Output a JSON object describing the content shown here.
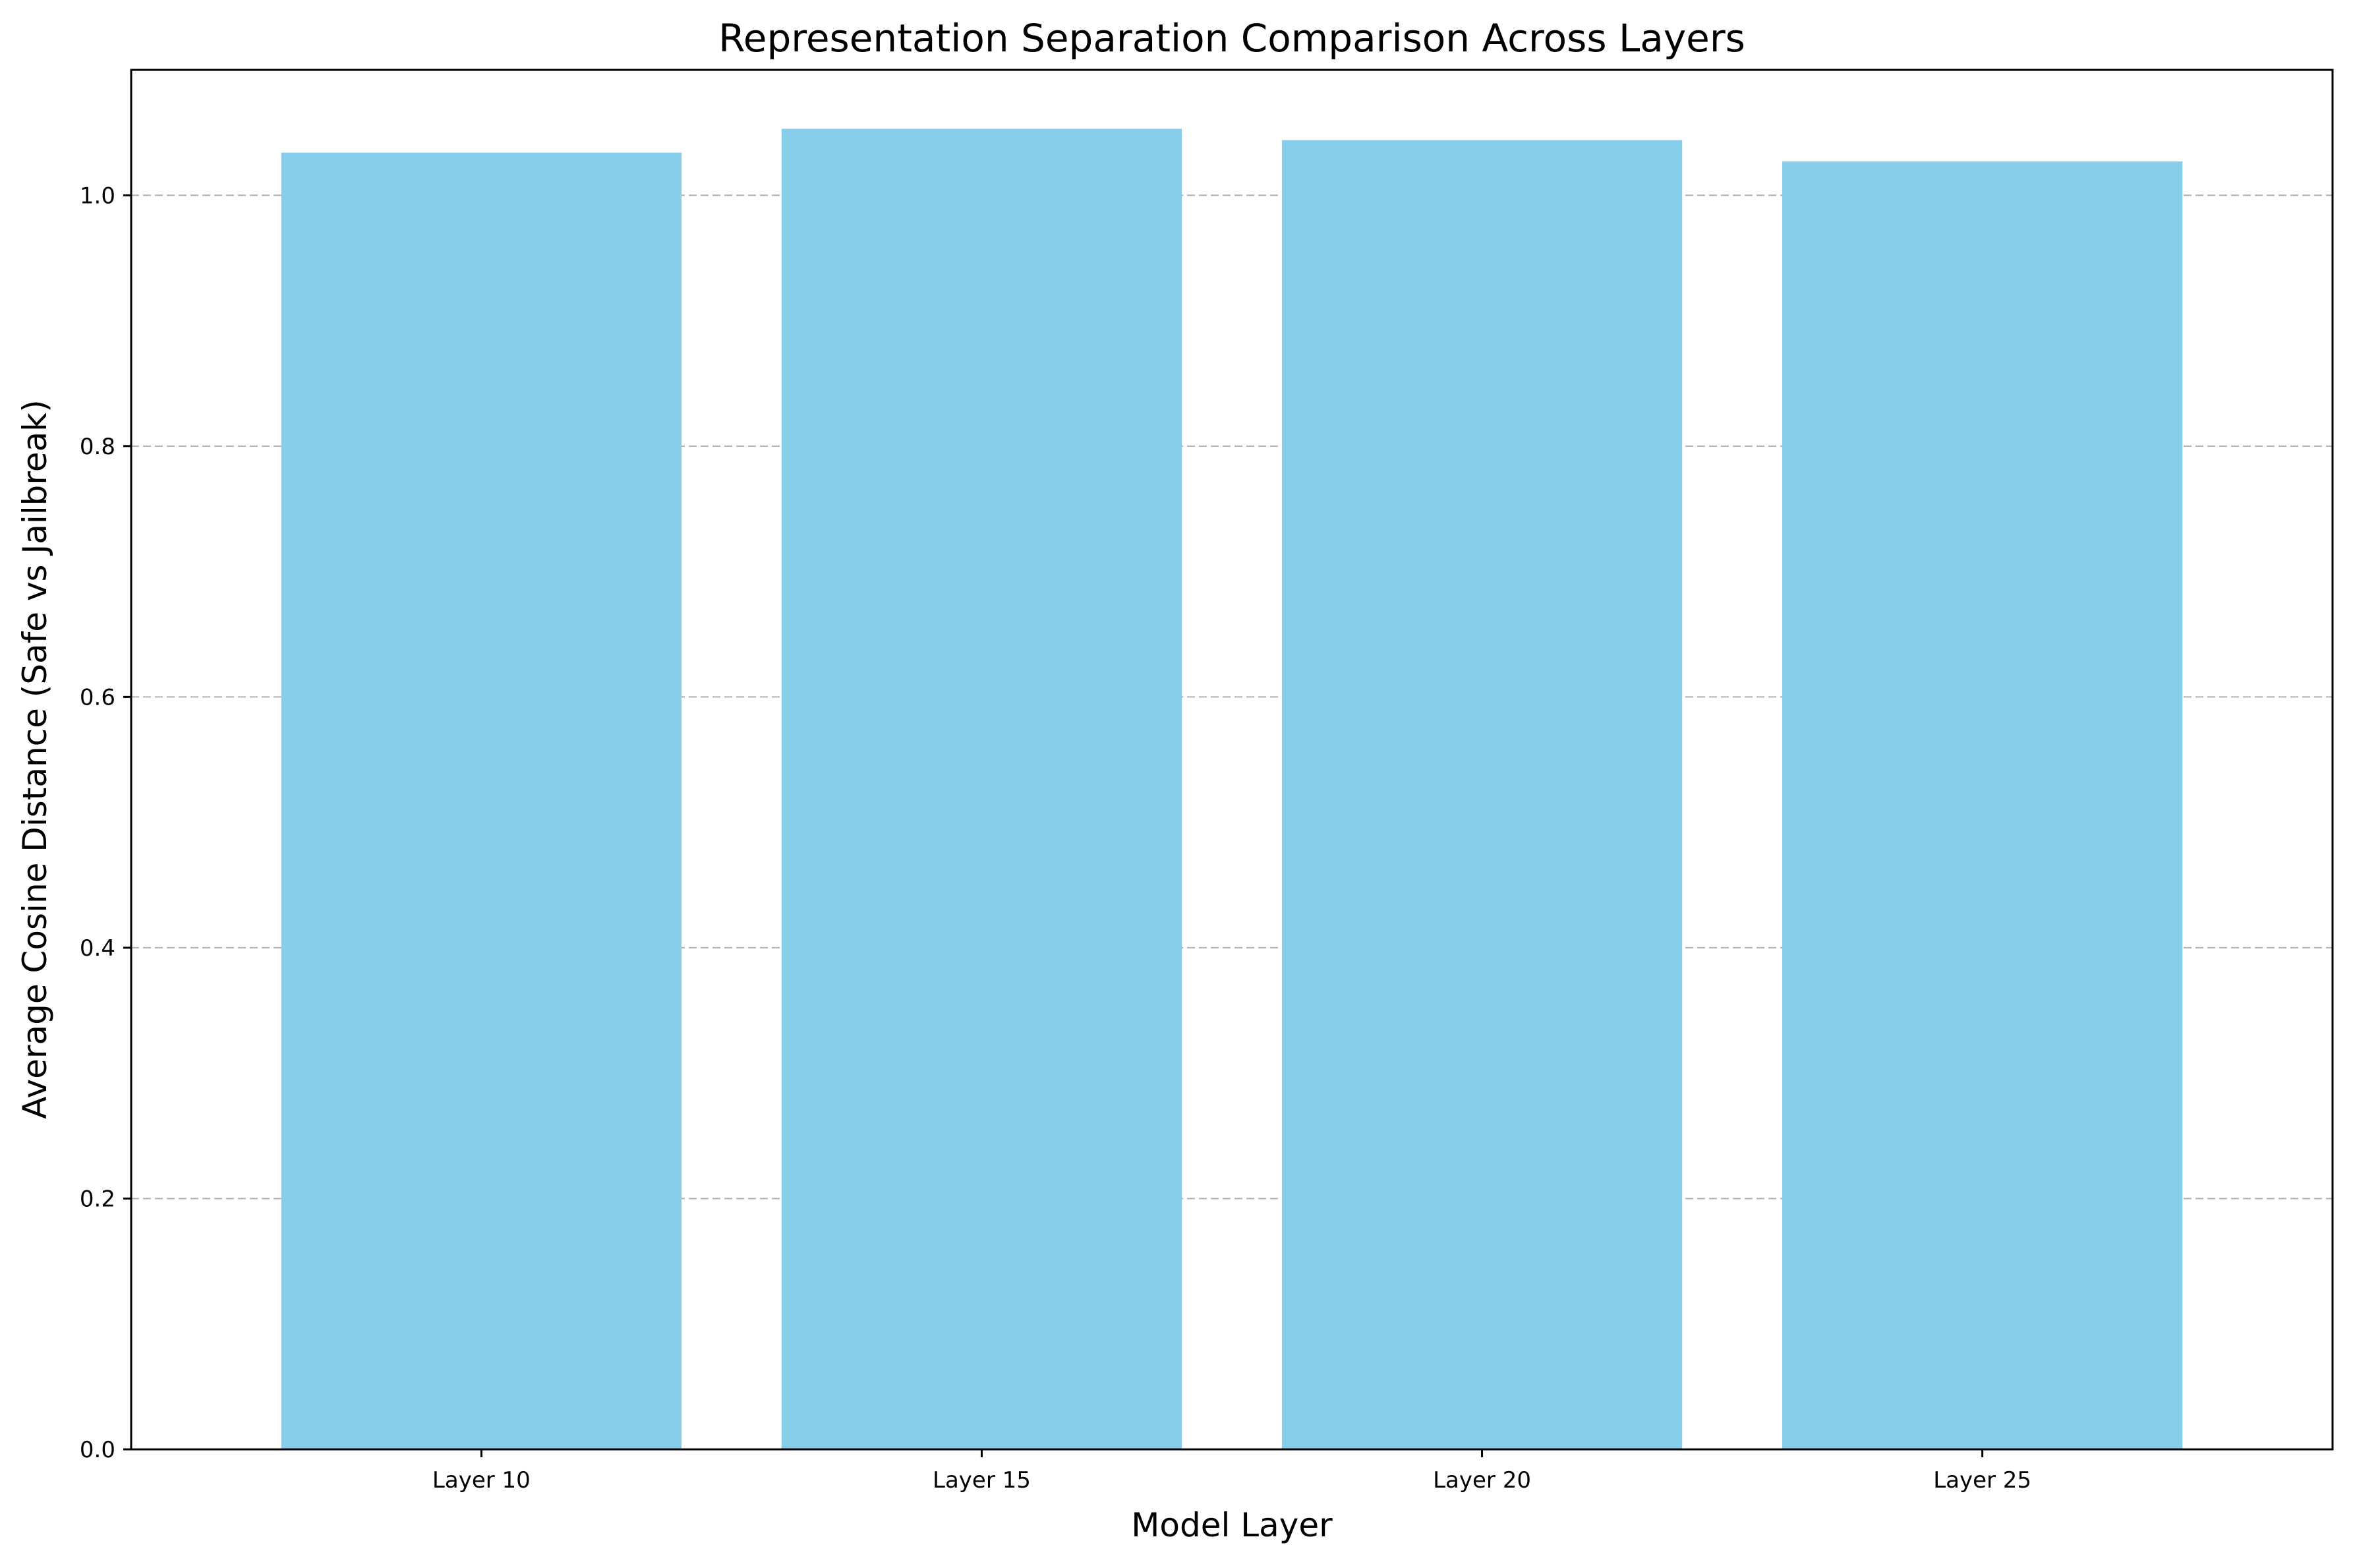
{
  "chart_data": {
    "type": "bar",
    "title": "Representation Separation Comparison Across Layers",
    "xlabel": "Model Layer",
    "ylabel": "Average Cosine Distance (Safe vs Jailbreak)",
    "categories": [
      "Layer 10",
      "Layer 15",
      "Layer 20",
      "Layer 25"
    ],
    "values": [
      1.034,
      1.053,
      1.044,
      1.027
    ],
    "ylim": [
      0,
      1.1
    ],
    "yticks": [
      0.0,
      0.2,
      0.4,
      0.6,
      0.8,
      1.0
    ],
    "ytick_labels": [
      "0.0",
      "0.2",
      "0.4",
      "0.6",
      "0.8",
      "1.0"
    ],
    "grid": {
      "axis": "y",
      "style": "dashed"
    },
    "colors": {
      "bar": "#87CEEB",
      "grid": "#b0b0b0",
      "axes": "#000000"
    }
  }
}
